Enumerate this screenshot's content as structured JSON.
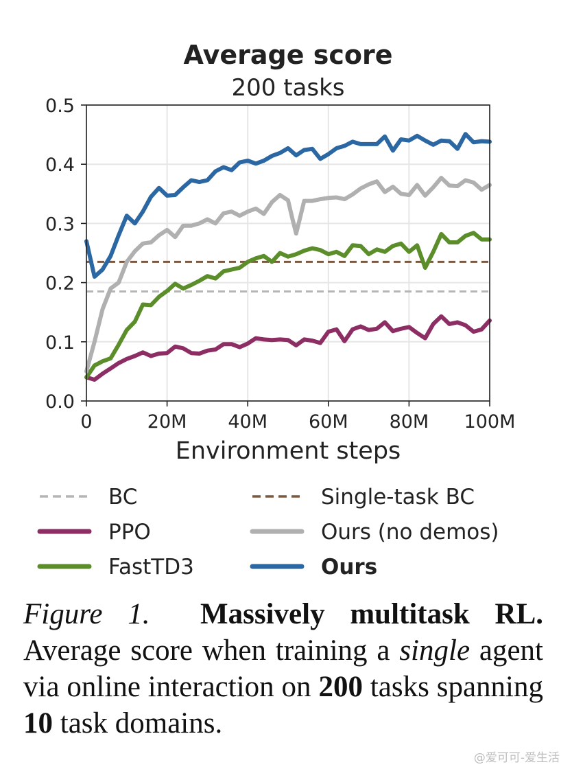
{
  "chart_data": {
    "type": "line",
    "title": "Average score",
    "subtitle": "200 tasks",
    "xlabel": "Environment steps",
    "ylabel": "",
    "xlim": [
      0,
      100
    ],
    "ylim": [
      0,
      0.5
    ],
    "x_ticks": [
      0,
      20,
      40,
      60,
      80,
      100
    ],
    "x_tick_labels": [
      "0",
      "20M",
      "40M",
      "60M",
      "80M",
      "100M"
    ],
    "y_ticks": [
      0.0,
      0.1,
      0.2,
      0.3,
      0.4,
      0.5
    ],
    "y_tick_labels": [
      "0.0",
      "0.1",
      "0.2",
      "0.3",
      "0.4",
      "0.5"
    ],
    "grid": true,
    "legend_position": "below",
    "baselines": [
      {
        "name": "BC",
        "value": 0.185,
        "color": "#b5b5b5",
        "style": "dashed"
      },
      {
        "name": "Single-task BC",
        "value": 0.235,
        "color": "#7b5840",
        "style": "dashed"
      }
    ],
    "series": [
      {
        "name": "PPO",
        "color": "#8c2d63",
        "x": [
          0,
          2,
          4,
          6,
          8,
          10,
          12,
          14,
          16,
          18,
          20,
          22,
          24,
          26,
          28,
          30,
          32,
          34,
          36,
          38,
          40,
          42,
          44,
          46,
          48,
          50,
          52,
          54,
          56,
          58,
          60,
          62,
          64,
          66,
          68,
          70,
          72,
          74,
          76,
          78,
          80,
          82,
          84,
          86,
          88,
          90,
          92,
          94,
          96,
          98,
          100
        ],
        "y": [
          0.04,
          0.036,
          0.046,
          0.055,
          0.064,
          0.071,
          0.076,
          0.082,
          0.076,
          0.08,
          0.081,
          0.092,
          0.089,
          0.081,
          0.08,
          0.085,
          0.087,
          0.096,
          0.096,
          0.091,
          0.097,
          0.106,
          0.104,
          0.103,
          0.104,
          0.103,
          0.094,
          0.104,
          0.102,
          0.098,
          0.117,
          0.121,
          0.101,
          0.121,
          0.126,
          0.12,
          0.122,
          0.133,
          0.118,
          0.122,
          0.125,
          0.115,
          0.106,
          0.13,
          0.143,
          0.13,
          0.133,
          0.128,
          0.117,
          0.121,
          0.136
        ]
      },
      {
        "name": "FastTD3",
        "color": "#5b8e2a",
        "x": [
          0,
          2,
          4,
          6,
          8,
          10,
          12,
          14,
          16,
          18,
          20,
          22,
          24,
          26,
          28,
          30,
          32,
          34,
          36,
          38,
          40,
          42,
          44,
          46,
          48,
          50,
          52,
          54,
          56,
          58,
          60,
          62,
          64,
          66,
          68,
          70,
          72,
          74,
          76,
          78,
          80,
          82,
          84,
          86,
          88,
          90,
          92,
          94,
          96,
          98,
          100
        ],
        "y": [
          0.04,
          0.06,
          0.067,
          0.072,
          0.095,
          0.12,
          0.134,
          0.163,
          0.162,
          0.176,
          0.186,
          0.198,
          0.19,
          0.196,
          0.203,
          0.211,
          0.207,
          0.219,
          0.222,
          0.225,
          0.235,
          0.241,
          0.245,
          0.235,
          0.25,
          0.244,
          0.248,
          0.254,
          0.258,
          0.255,
          0.248,
          0.252,
          0.245,
          0.263,
          0.262,
          0.248,
          0.256,
          0.252,
          0.262,
          0.266,
          0.252,
          0.263,
          0.225,
          0.252,
          0.282,
          0.268,
          0.268,
          0.279,
          0.284,
          0.273,
          0.273
        ]
      },
      {
        "name": "Ours (no demos)",
        "color": "#b0b0b0",
        "x": [
          0,
          2,
          4,
          6,
          8,
          10,
          12,
          14,
          16,
          18,
          20,
          22,
          24,
          26,
          28,
          30,
          32,
          34,
          36,
          38,
          40,
          42,
          44,
          46,
          48,
          50,
          51,
          52,
          53,
          54,
          56,
          58,
          60,
          62,
          64,
          66,
          68,
          70,
          72,
          74,
          76,
          78,
          80,
          82,
          84,
          86,
          88,
          90,
          92,
          94,
          96,
          98,
          100
        ],
        "y": [
          0.05,
          0.1,
          0.155,
          0.19,
          0.2,
          0.235,
          0.253,
          0.266,
          0.268,
          0.28,
          0.289,
          0.277,
          0.296,
          0.296,
          0.3,
          0.307,
          0.3,
          0.317,
          0.32,
          0.313,
          0.32,
          0.325,
          0.316,
          0.336,
          0.348,
          0.339,
          0.31,
          0.283,
          0.31,
          0.338,
          0.338,
          0.341,
          0.343,
          0.344,
          0.341,
          0.349,
          0.359,
          0.366,
          0.371,
          0.353,
          0.362,
          0.35,
          0.348,
          0.365,
          0.347,
          0.361,
          0.377,
          0.364,
          0.363,
          0.373,
          0.369,
          0.357,
          0.365
        ]
      },
      {
        "name": "Ours",
        "color": "#2b67a2",
        "x": [
          0,
          2,
          4,
          6,
          8,
          10,
          12,
          14,
          16,
          18,
          20,
          22,
          24,
          26,
          28,
          30,
          32,
          34,
          36,
          38,
          40,
          42,
          44,
          46,
          48,
          50,
          52,
          54,
          56,
          58,
          60,
          62,
          64,
          66,
          68,
          70,
          72,
          74,
          76,
          78,
          80,
          82,
          84,
          86,
          88,
          90,
          92,
          94,
          96,
          98,
          100
        ],
        "y": [
          0.27,
          0.21,
          0.222,
          0.245,
          0.28,
          0.313,
          0.3,
          0.32,
          0.345,
          0.36,
          0.347,
          0.348,
          0.361,
          0.373,
          0.37,
          0.373,
          0.388,
          0.395,
          0.39,
          0.403,
          0.406,
          0.401,
          0.406,
          0.414,
          0.419,
          0.427,
          0.415,
          0.424,
          0.426,
          0.409,
          0.417,
          0.427,
          0.431,
          0.438,
          0.434,
          0.434,
          0.434,
          0.447,
          0.423,
          0.442,
          0.44,
          0.448,
          0.44,
          0.433,
          0.44,
          0.439,
          0.426,
          0.451,
          0.437,
          0.439,
          0.438
        ]
      }
    ]
  },
  "legend": [
    {
      "label": "BC",
      "color": "#b5b5b5",
      "style": "dashed",
      "bold": false
    },
    {
      "label": "Single-task BC",
      "color": "#7b5840",
      "style": "dashed",
      "bold": false
    },
    {
      "label": "PPO",
      "color": "#8c2d63",
      "style": "solid",
      "bold": false
    },
    {
      "label": "Ours (no demos)",
      "color": "#b0b0b0",
      "style": "solid",
      "bold": false
    },
    {
      "label": "FastTD3",
      "color": "#5b8e2a",
      "style": "solid",
      "bold": false
    },
    {
      "label": "Ours",
      "color": "#2b67a2",
      "style": "solid",
      "bold": true
    }
  ],
  "caption": {
    "figure_label": "Figure 1.",
    "heading": "Massively multitask RL.",
    "text_1": "Average score when training a",
    "emph": "single",
    "text_2": "agent via online interaction on",
    "count_tasks": "200",
    "text_3": "tasks spanning",
    "count_domains": "10",
    "text_4": "task domains."
  },
  "watermark": "@爱可可-爱生活"
}
